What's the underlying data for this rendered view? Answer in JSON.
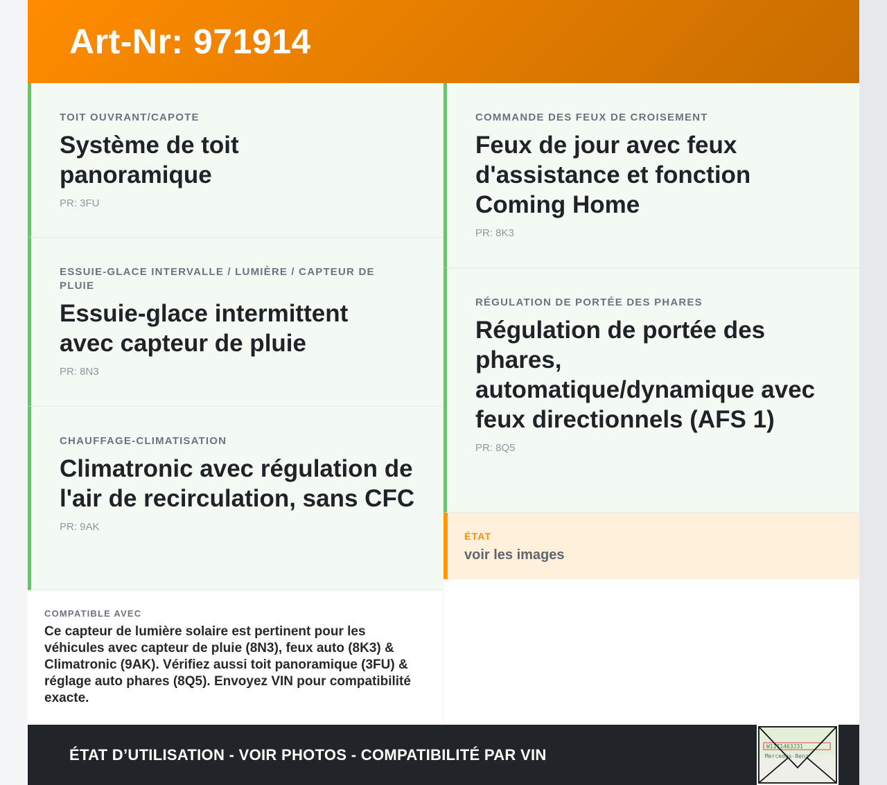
{
  "header": {
    "title": "Art-Nr: 971914"
  },
  "left_cards": [
    {
      "label": "Toit ouvrant/capote",
      "title": "Système de toit panoramique",
      "pr": "PR: 3FU"
    },
    {
      "label": "Essuie-glace intervalle / lumière / capteur de pluie",
      "title": "Essuie-glace intermittent avec capteur de pluie",
      "pr": "PR: 8N3"
    },
    {
      "label": "Chauffage-climatisation",
      "title": "Climatronic avec régulation de l'air de recirculation, sans CFC",
      "pr": "PR: 9AK"
    }
  ],
  "right_cards": [
    {
      "label": "Commande des feux de croisement",
      "title": "Feux de jour avec feux d'assistance et fonction Coming Home",
      "pr": "PR: 8K3"
    },
    {
      "label": "Régulation de portée des phares",
      "title": "Régulation de portée des phares, automatique/dynamique avec feux directionnels (AFS 1)",
      "pr": "PR: 8Q5"
    }
  ],
  "state": {
    "label": "État",
    "value": "voir les images"
  },
  "compat": {
    "label": "Compatible avec",
    "text": "Ce capteur de lumière solaire est pertinent pour les véhicules avec capteur de pluie (8N3), feux auto (8K3) & Climatronic (9AK). Vérifiez aussi toit panoramique (3FU) & réglage auto phares (8Q5). Envoyez VIN pour compatibilité exacte."
  },
  "footer": {
    "text": "ÉTAT D’UTILISATION - VOIR PHOTOS - COMPATIBILITÉ PAR VIN",
    "thumbnail_icon": "vin-document-envelope-icon",
    "thumbnail_text": "Mercedes-Benz"
  },
  "colors": {
    "accent": "#ff8c00",
    "green": "#6cc070",
    "footer": "#212428"
  }
}
